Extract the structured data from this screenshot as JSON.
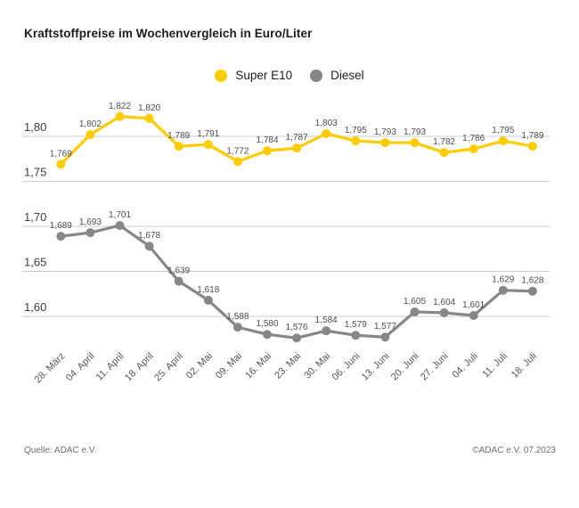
{
  "title": "Kraftstoffpreise im Wochenvergleich in Euro/Liter",
  "footer": {
    "source": "Quelle: ADAC e.V.",
    "copyright": "©ADAC e.V. 07.2023"
  },
  "colors": {
    "super_e10": "#FFCC00",
    "diesel": "#878787",
    "gridline": "#cccccc",
    "axis_text": "#3d3d3d",
    "data_label_text": "#4d4d4d",
    "x_label_text": "#575757"
  },
  "chart_data": {
    "type": "line",
    "title": "Kraftstoffpreise im Wochenvergleich in Euro/Liter",
    "xlabel": "",
    "ylabel": "Euro/Liter",
    "grid": true,
    "legend_position": "top",
    "ylim": [
      1.55,
      1.84
    ],
    "categories": [
      "28. März",
      "04. April",
      "11. April",
      "18. April",
      "25. April",
      "02. Mai",
      "09. Mai",
      "16. Mai",
      "23. Mai",
      "30. Mai",
      "06. Juni",
      "13. Juni",
      "20. Juni",
      "27. Juni",
      "04. Juli",
      "11. Juli",
      "18. Juli"
    ],
    "yticks": [
      {
        "label": "1,80",
        "value": 1.8
      },
      {
        "label": "1,75",
        "value": 1.75
      },
      {
        "label": "1,70",
        "value": 1.7
      },
      {
        "label": "1,65",
        "value": 1.65
      },
      {
        "label": "1,60",
        "value": 1.6
      }
    ],
    "series": [
      {
        "name": "Super E10",
        "color": "#FFCC00",
        "values": [
          1.769,
          1.802,
          1.822,
          1.82,
          1.789,
          1.791,
          1.772,
          1.784,
          1.787,
          1.803,
          1.795,
          1.793,
          1.793,
          1.782,
          1.786,
          1.795,
          1.789
        ]
      },
      {
        "name": "Diesel",
        "color": "#878787",
        "values": [
          1.689,
          1.693,
          1.701,
          1.678,
          1.639,
          1.618,
          1.588,
          1.58,
          1.576,
          1.584,
          1.579,
          1.577,
          1.605,
          1.604,
          1.601,
          1.629,
          1.628
        ]
      }
    ]
  }
}
